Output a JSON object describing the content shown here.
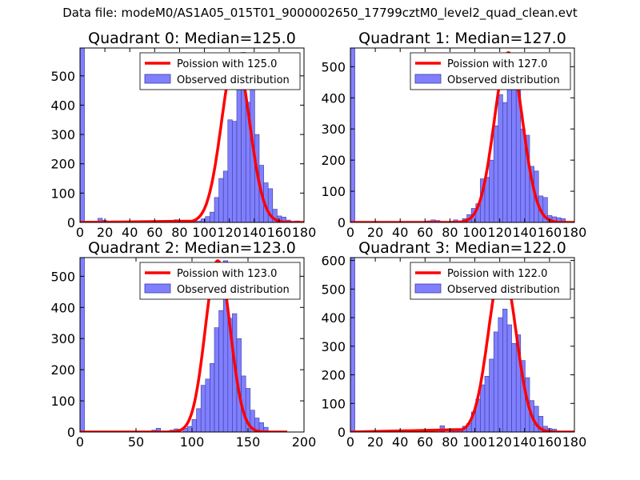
{
  "figure": {
    "suptitle": "Data file: modeM0/AS1A05_015T01_9000002650_17799cztM0_level2_quad_clean.evt"
  },
  "colors": {
    "hist_fill": "#8080ff",
    "hist_edge": "#3a3aa0",
    "poisson_line": "#ff0000",
    "axes": "#000000"
  },
  "chart_data": [
    {
      "type": "bar",
      "title": "Quadrant 0: Median=125.0",
      "xlim": [
        0,
        180
      ],
      "ylim": [
        0,
        595
      ],
      "xticks": [
        0,
        20,
        40,
        60,
        80,
        100,
        120,
        140,
        160,
        180
      ],
      "yticks": [
        0,
        100,
        200,
        300,
        400,
        500
      ],
      "legend": [
        "Poission with 125.0",
        "Observed distribution"
      ],
      "legend_position": "top-right",
      "bin_width": 3.6,
      "bins": [
        [
          0,
          600
        ],
        [
          14.4,
          14
        ],
        [
          18,
          7
        ],
        [
          25.2,
          5
        ],
        [
          28.8,
          3
        ],
        [
          36,
          3
        ],
        [
          43.2,
          2
        ],
        [
          54,
          2
        ],
        [
          64.8,
          2
        ],
        [
          72,
          6
        ],
        [
          75.6,
          9
        ],
        [
          79.2,
          6
        ],
        [
          86.4,
          2
        ],
        [
          90,
          3
        ],
        [
          93.6,
          5
        ],
        [
          97.2,
          12
        ],
        [
          100.8,
          20
        ],
        [
          104.4,
          35
        ],
        [
          108,
          85
        ],
        [
          111.6,
          150
        ],
        [
          115.2,
          175
        ],
        [
          118.8,
          350
        ],
        [
          122.4,
          345
        ],
        [
          126,
          490
        ],
        [
          129.6,
          580
        ],
        [
          133.2,
          410
        ],
        [
          136.8,
          550
        ],
        [
          140.4,
          300
        ],
        [
          144,
          195
        ],
        [
          147.6,
          135
        ],
        [
          151.2,
          115
        ],
        [
          154.8,
          45
        ],
        [
          158.4,
          22
        ],
        [
          162,
          18
        ],
        [
          165.6,
          8
        ],
        [
          172.8,
          5
        ],
        [
          176.4,
          3
        ]
      ],
      "poisson_mean": 125.0,
      "poisson_peak": 570,
      "poisson_range": [
        90,
        175
      ]
    },
    {
      "type": "bar",
      "title": "Quadrant 1: Median=127.0",
      "xlim": [
        0,
        180
      ],
      "ylim": [
        0,
        560
      ],
      "xticks": [
        0,
        20,
        40,
        60,
        80,
        100,
        120,
        140,
        160,
        180
      ],
      "yticks": [
        0,
        100,
        200,
        300,
        400,
        500
      ],
      "legend": [
        "Poission with 127.0",
        "Observed distribution"
      ],
      "legend_position": "top-right",
      "bin_width": 3.6,
      "bins": [
        [
          0,
          560
        ],
        [
          18,
          3
        ],
        [
          61.2,
          5
        ],
        [
          64.8,
          8
        ],
        [
          68.4,
          6
        ],
        [
          75.6,
          3
        ],
        [
          82.8,
          8
        ],
        [
          90,
          12
        ],
        [
          93.6,
          25
        ],
        [
          97.2,
          45
        ],
        [
          100.8,
          60
        ],
        [
          104.4,
          140
        ],
        [
          108,
          145
        ],
        [
          111.6,
          200
        ],
        [
          115.2,
          310
        ],
        [
          118.8,
          410
        ],
        [
          122.4,
          385
        ],
        [
          126,
          430
        ],
        [
          129.6,
          540
        ],
        [
          133.2,
          440
        ],
        [
          136.8,
          300
        ],
        [
          140.4,
          280
        ],
        [
          144,
          180
        ],
        [
          147.6,
          165
        ],
        [
          151.2,
          85
        ],
        [
          154.8,
          80
        ],
        [
          158.4,
          22
        ],
        [
          162,
          18
        ],
        [
          165.6,
          15
        ],
        [
          169.2,
          12
        ]
      ],
      "poisson_mean": 127.0,
      "poisson_peak": 545,
      "poisson_range": [
        60,
        175
      ]
    },
    {
      "type": "bar",
      "title": "Quadrant 2: Median=123.0",
      "xlim": [
        0,
        200
      ],
      "ylim": [
        0,
        560
      ],
      "xticks": [
        0,
        50,
        100,
        150,
        200
      ],
      "yticks": [
        0,
        100,
        200,
        300,
        400,
        500
      ],
      "legend": [
        "Poission with 123.0",
        "Observed distribution"
      ],
      "legend_position": "top-right",
      "bin_width": 4,
      "bins": [
        [
          0,
          560
        ],
        [
          64,
          6
        ],
        [
          68,
          12
        ],
        [
          80,
          6
        ],
        [
          84,
          10
        ],
        [
          92,
          12
        ],
        [
          96,
          18
        ],
        [
          100,
          40
        ],
        [
          104,
          75
        ],
        [
          108,
          150
        ],
        [
          112,
          170
        ],
        [
          116,
          220
        ],
        [
          120,
          335
        ],
        [
          124,
          390
        ],
        [
          128,
          550
        ],
        [
          132,
          365
        ],
        [
          136,
          380
        ],
        [
          140,
          300
        ],
        [
          144,
          180
        ],
        [
          148,
          140
        ],
        [
          152,
          70
        ],
        [
          156,
          45
        ],
        [
          160,
          30
        ],
        [
          164,
          15
        ]
      ],
      "poisson_mean": 123.0,
      "poisson_peak": 550,
      "poisson_range": [
        70,
        180
      ]
    },
    {
      "type": "bar",
      "title": "Quadrant 3: Median=122.0",
      "xlim": [
        0,
        180
      ],
      "ylim": [
        0,
        610
      ],
      "xticks": [
        0,
        20,
        40,
        60,
        80,
        100,
        120,
        140,
        160,
        180
      ],
      "yticks": [
        0,
        100,
        200,
        300,
        400,
        500,
        600
      ],
      "legend": [
        "Poission with 122.0",
        "Observed distribution"
      ],
      "legend_position": "top-right",
      "bin_width": 3.6,
      "bins": [
        [
          0,
          610
        ],
        [
          72,
          22
        ],
        [
          79.2,
          12
        ],
        [
          82.8,
          8
        ],
        [
          86.4,
          10
        ],
        [
          90,
          20
        ],
        [
          93.6,
          30
        ],
        [
          97.2,
          70
        ],
        [
          100.8,
          115
        ],
        [
          104.4,
          165
        ],
        [
          108,
          195
        ],
        [
          111.6,
          255
        ],
        [
          115.2,
          350
        ],
        [
          118.8,
          400
        ],
        [
          122.4,
          430
        ],
        [
          126,
          375
        ],
        [
          129.6,
          310
        ],
        [
          133.2,
          340
        ],
        [
          136.8,
          250
        ],
        [
          140.4,
          190
        ],
        [
          144,
          110
        ],
        [
          147.6,
          90
        ],
        [
          151.2,
          55
        ],
        [
          154.8,
          20
        ],
        [
          158.4,
          12
        ],
        [
          162,
          10
        ]
      ],
      "poisson_mean": 122.0,
      "poisson_peak": 580,
      "poisson_range": [
        90,
        175
      ]
    }
  ]
}
